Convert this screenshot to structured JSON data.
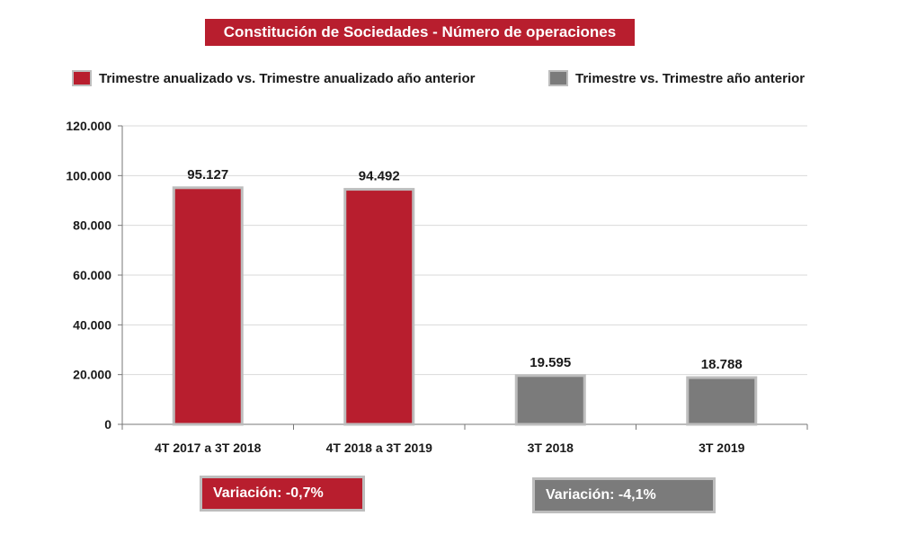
{
  "chart_data": {
    "type": "bar",
    "title": "Constitución de Sociedades - Número de operaciones",
    "categories": [
      "4T 2017 a 3T 2018",
      "4T 2018 a 3T 2019",
      "3T 2018",
      "3T 2019"
    ],
    "values": [
      95127,
      94492,
      19595,
      18788
    ],
    "value_labels": [
      "95.127",
      "94.492",
      "19.595",
      "18.788"
    ],
    "bar_series": [
      0,
      0,
      1,
      1
    ],
    "series": [
      {
        "name": "Trimestre anualizado vs. Trimestre anualizado año anterior",
        "color": "#b81e2e",
        "categories": [
          "4T 2017 a 3T 2018",
          "4T 2018 a 3T 2019"
        ]
      },
      {
        "name": "Trimestre vs. Trimestre año anterior",
        "color": "#7b7b7b",
        "categories": [
          "3T 2018",
          "3T 2019"
        ]
      }
    ],
    "yticks": [
      0,
      20000,
      40000,
      60000,
      80000,
      100000,
      120000
    ],
    "ytick_labels": [
      "0",
      "20.000",
      "40.000",
      "60.000",
      "80.000",
      "100.000",
      "120.000"
    ],
    "ylim": [
      0,
      120000
    ],
    "grid": true,
    "legend_position": "top",
    "xlabel": "",
    "ylabel": ""
  },
  "annotations": {
    "variation_annualized": "Variación:  -0,7%",
    "variation_quarterly": "Variación: -4,1%"
  },
  "colors": {
    "red": "#b81e2e",
    "gray": "#7b7b7b",
    "bar_border": "#bdbdbd",
    "grid": "#d9d9d9"
  }
}
